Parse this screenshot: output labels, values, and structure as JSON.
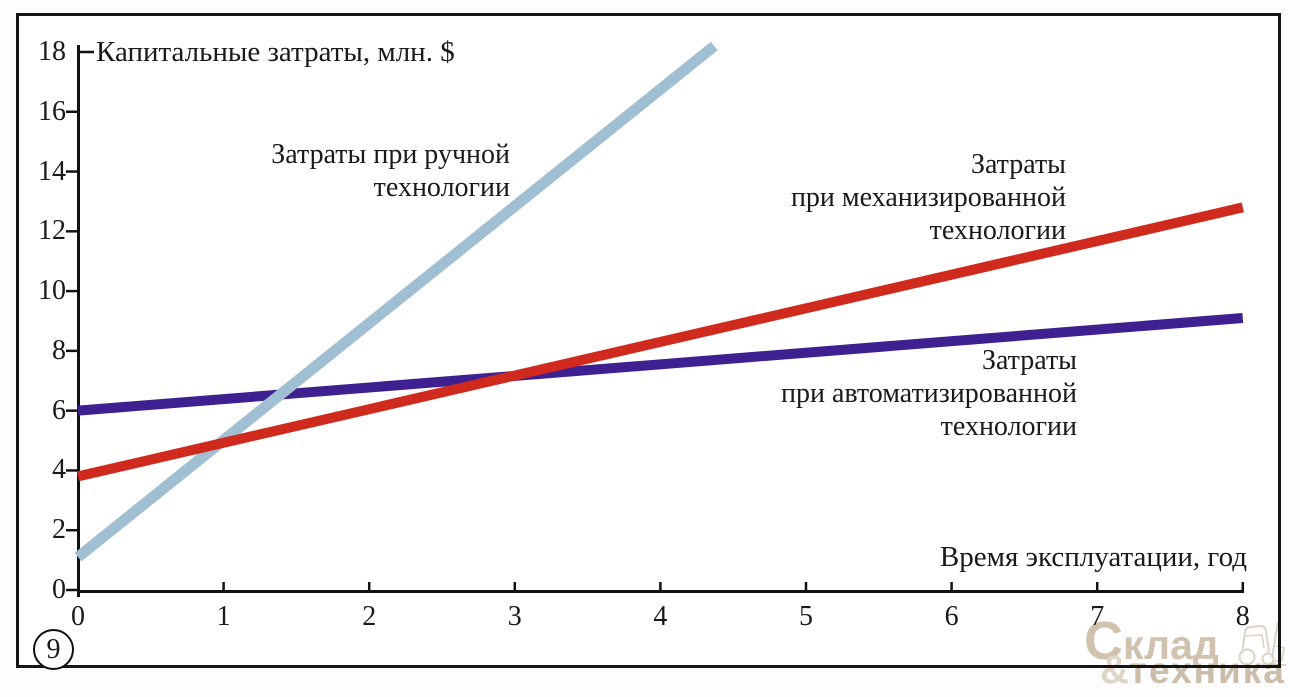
{
  "figure_number": "9",
  "title": "Капитальные затраты, млн. $",
  "x_axis_label": "Время эксплуатации, год",
  "annotations": {
    "manual": {
      "lines": [
        "Затраты при ручной",
        "технологии"
      ]
    },
    "mechanized": {
      "lines": [
        "Затраты",
        "при механизированной",
        "технологии"
      ]
    },
    "automated": {
      "lines": [
        "Затраты",
        "при автоматизированной",
        "технологии"
      ]
    }
  },
  "watermark": {
    "cap": "С",
    "rest": "клад",
    "amp": "&",
    "word": "техника"
  },
  "colors": {
    "manual_line": "#a0bfd2",
    "mechanized_line": "#d0291d",
    "automated_line": "#3e2090",
    "axis": "#111111",
    "watermark": "#ccbda6"
  },
  "chart_data": {
    "type": "line",
    "title": "Капитальные затраты, млн. $",
    "xlabel": "Время эксплуатации, год",
    "ylabel": "Капитальные затраты, млн. $",
    "xlim": [
      0,
      8
    ],
    "ylim": [
      0,
      18
    ],
    "xticks": [
      0,
      1,
      2,
      3,
      4,
      5,
      6,
      7,
      8
    ],
    "yticks": [
      0,
      2,
      4,
      6,
      8,
      10,
      12,
      14,
      16,
      18
    ],
    "grid": false,
    "legend_position": "inline-annotations",
    "series": [
      {
        "name": "Затраты при ручной технологии",
        "color": "#a0bfd2",
        "x": [
          0,
          4.37
        ],
        "y": [
          1.1,
          18.2
        ]
      },
      {
        "name": "Затраты при механизированной технологии",
        "color": "#d0291d",
        "x": [
          0,
          8
        ],
        "y": [
          3.8,
          12.8
        ]
      },
      {
        "name": "Затраты при автоматизированной технологии",
        "color": "#3e2090",
        "x": [
          0,
          8
        ],
        "y": [
          6.0,
          9.1
        ]
      }
    ]
  }
}
